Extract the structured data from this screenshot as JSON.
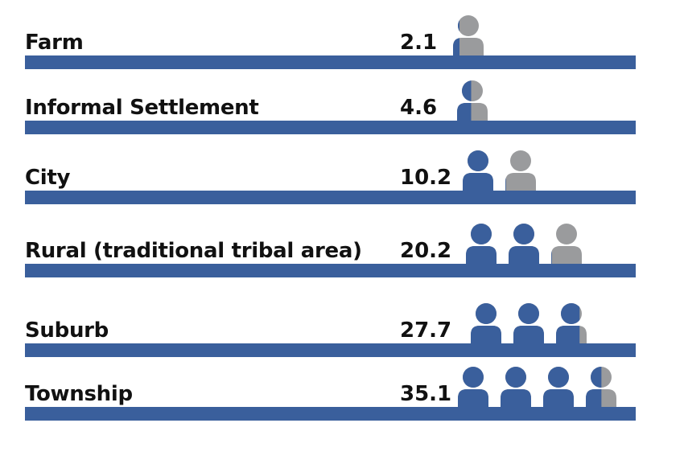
{
  "chart_data": {
    "type": "bar",
    "categories": [
      "Farm",
      "Informal Settlement",
      "City",
      "Rural (traditional tribal area)",
      "Suburb",
      "Township"
    ],
    "values": [
      2.1,
      4.6,
      10.2,
      20.2,
      27.7,
      35.1
    ],
    "title": "",
    "xlabel": "",
    "ylabel": "",
    "icon_unit": 10,
    "colors": {
      "bar": "#3a5f9c",
      "filled": "#3a5f9c",
      "empty": "#9a9b9d"
    }
  }
}
